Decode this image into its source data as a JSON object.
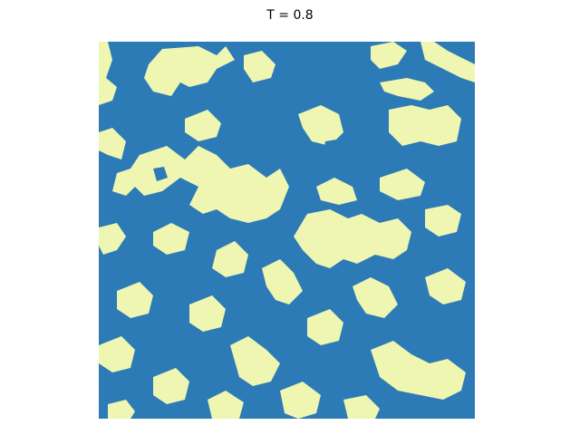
{
  "figure": {
    "title": "T = 0.8"
  },
  "lattice": {
    "color_spin_up": "#2c7bb6",
    "color_spin_down": "#eef6b2",
    "grid_visible": false,
    "axes_visible": false
  }
}
